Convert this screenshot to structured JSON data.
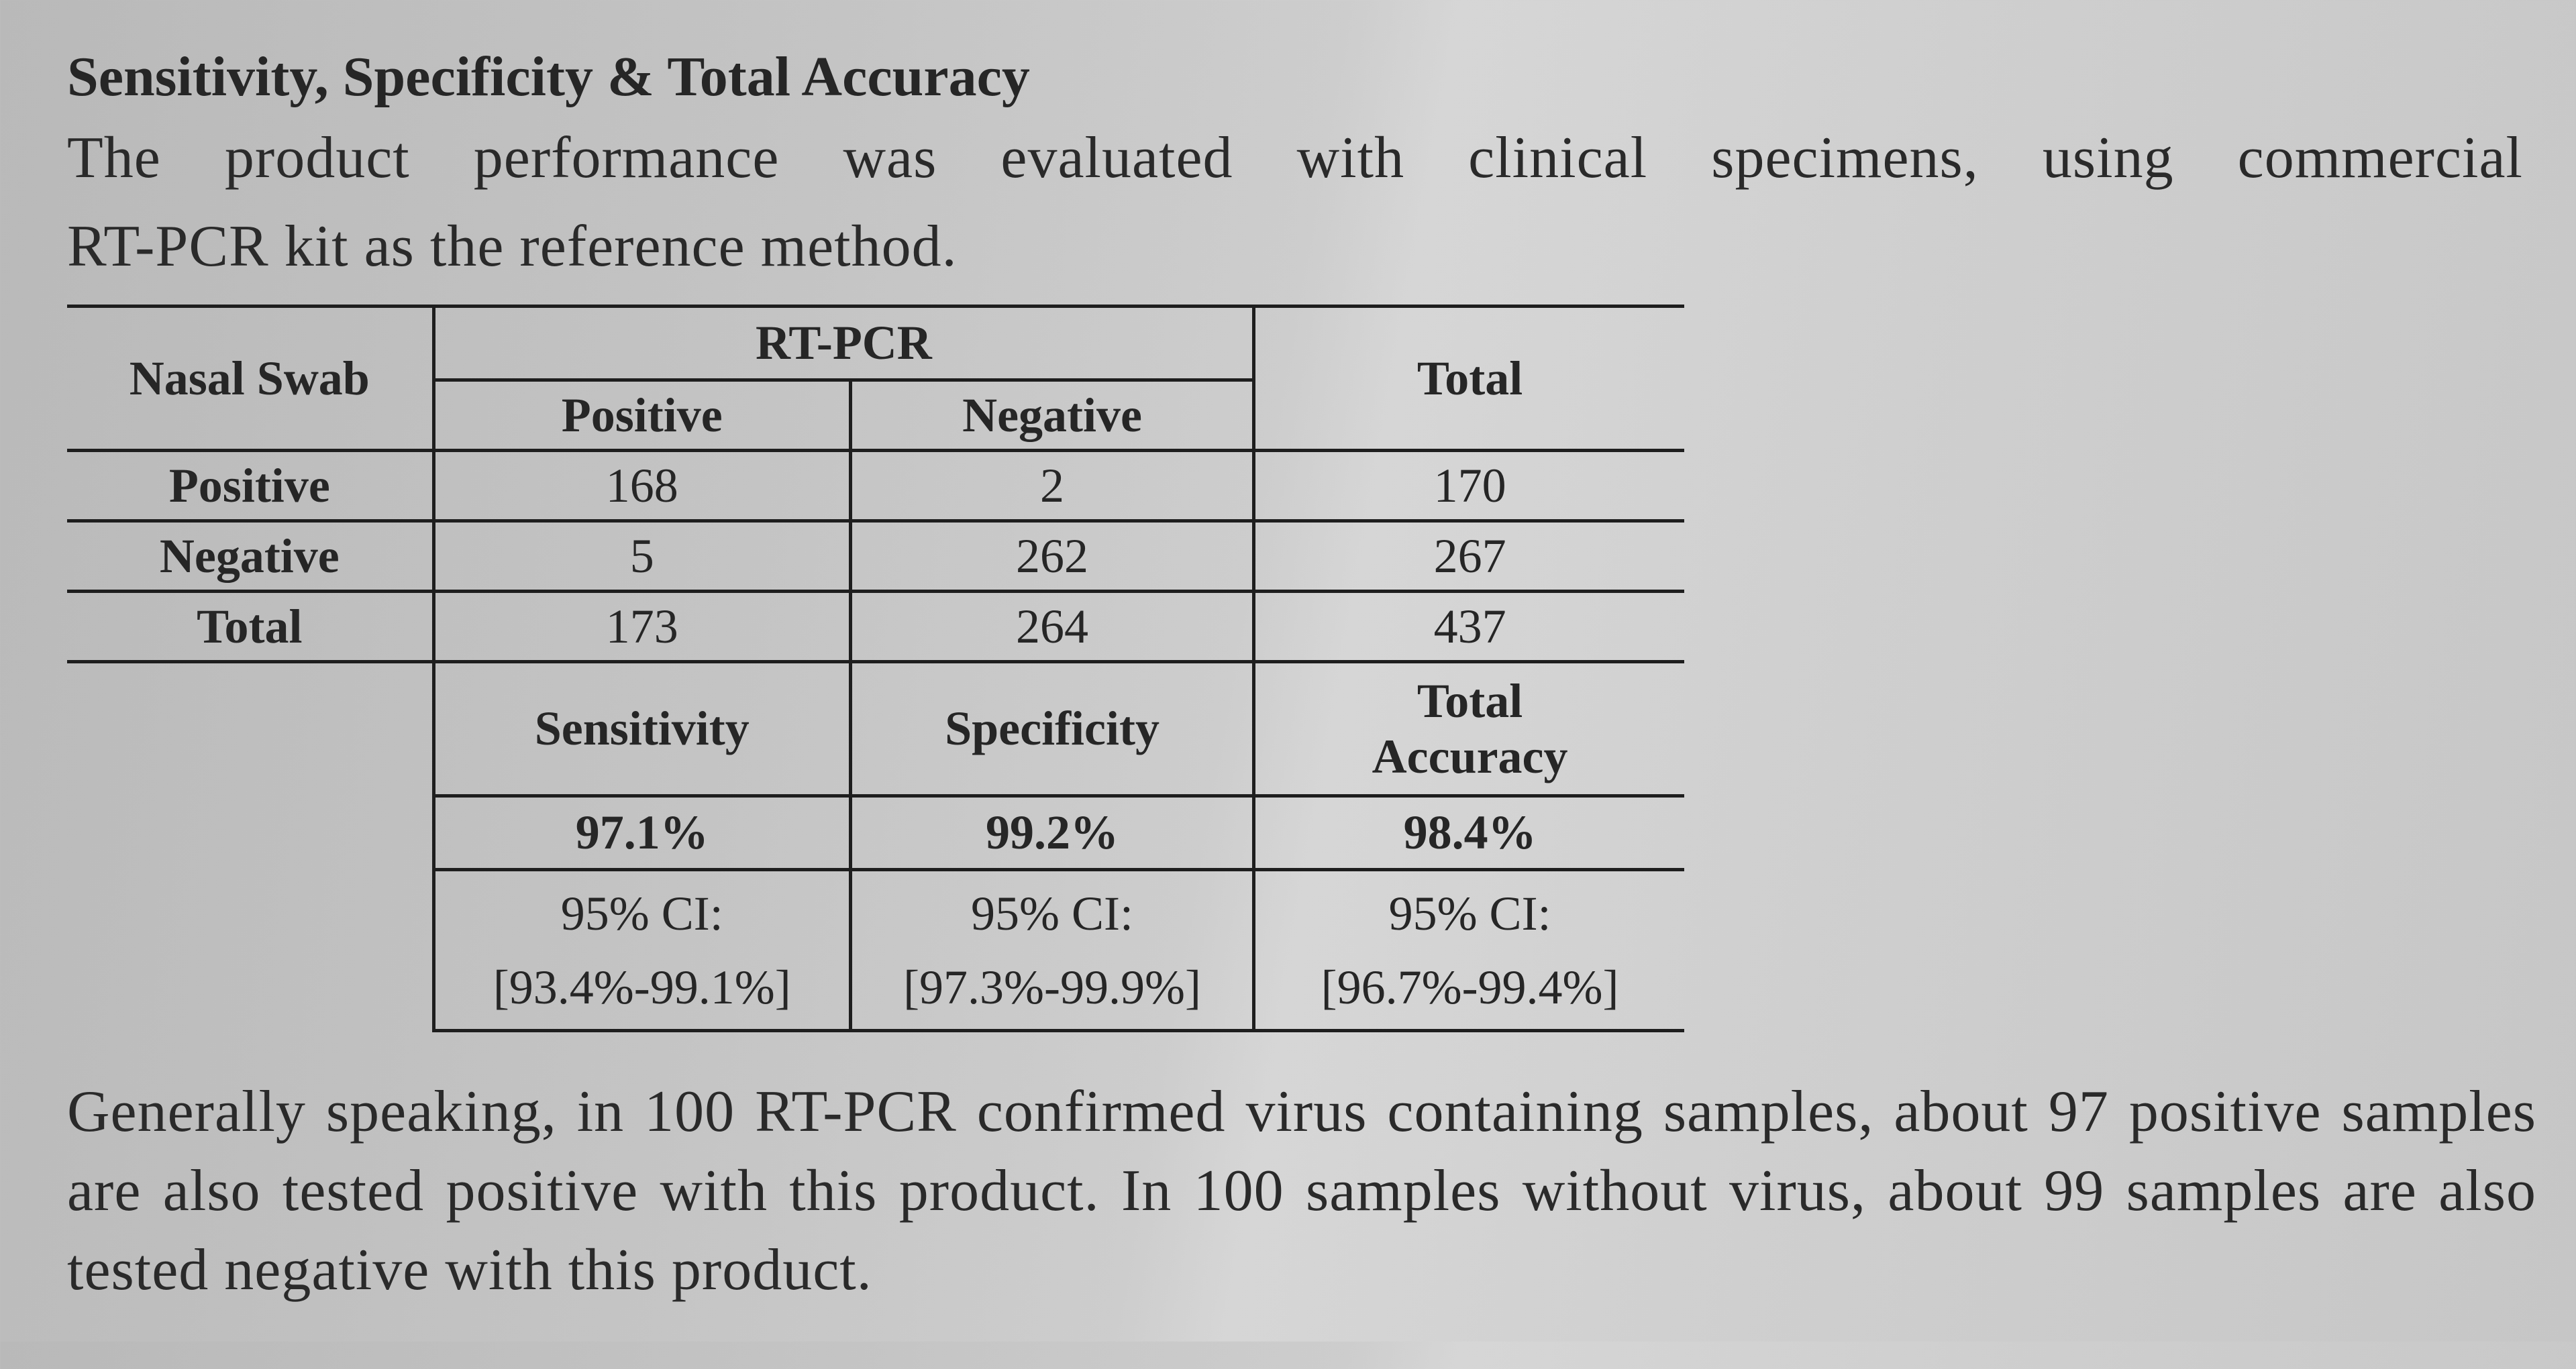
{
  "heading": "Sensitivity, Specificity & Total Accuracy",
  "intro_line1": "The product performance was evaluated with clinical specimens, using commercial",
  "intro_line2": "RT-PCR kit as the reference method.",
  "table": {
    "row_header_label": "Nasal Swab",
    "group_header": "RT-PCR",
    "col_positive": "Positive",
    "col_negative": "Negative",
    "col_total": "Total",
    "rows": [
      {
        "label": "Positive",
        "positive": "168",
        "negative": "2",
        "total": "170"
      },
      {
        "label": "Negative",
        "positive": "5",
        "negative": "262",
        "total": "267"
      },
      {
        "label": "Total",
        "positive": "173",
        "negative": "264",
        "total": "437"
      }
    ],
    "stats": {
      "sensitivity_label": "Sensitivity",
      "specificity_label": "Specificity",
      "accuracy_label_line1": "Total",
      "accuracy_label_line2": "Accuracy",
      "sensitivity_value": "97.1%",
      "specificity_value": "99.2%",
      "accuracy_value": "98.4%",
      "ci_label": "95% CI:",
      "sensitivity_ci": "[93.4%-99.1%]",
      "specificity_ci": "[97.3%-99.9%]",
      "accuracy_ci": "[96.7%-99.4%]"
    }
  },
  "outro": "Generally speaking, in 100 RT-PCR confirmed virus containing samples, about 97 positive samples are also tested positive with this product. In 100 samples without virus, about 99 samples are also tested negative with this product."
}
